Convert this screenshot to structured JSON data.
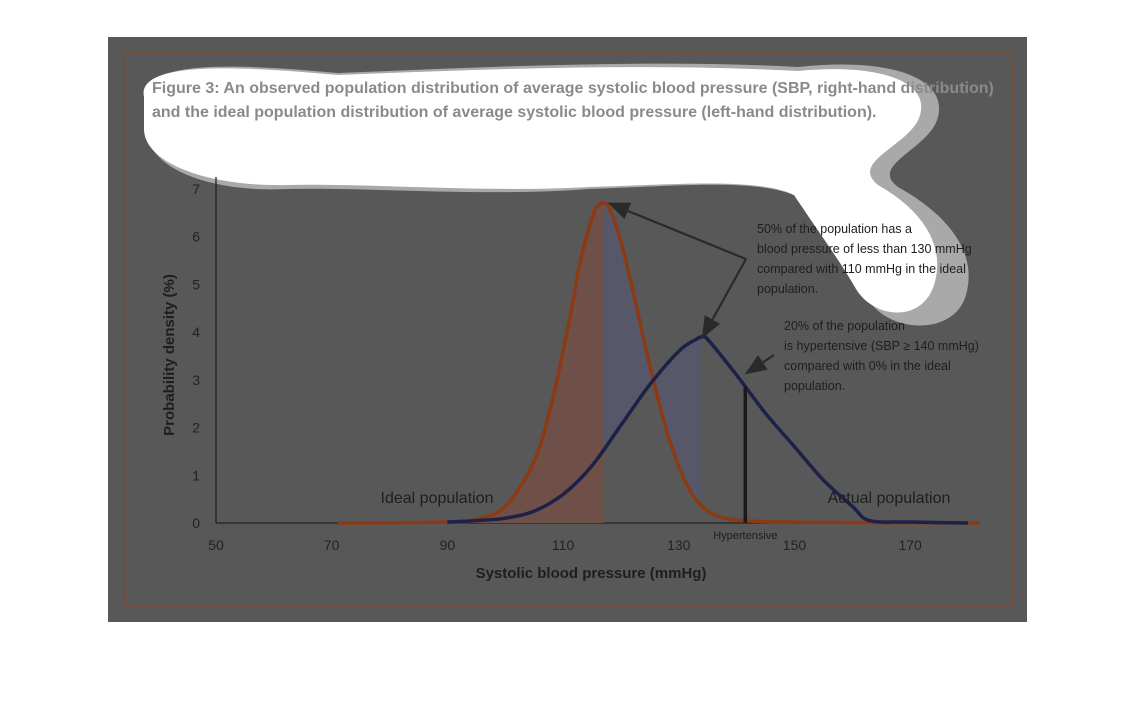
{
  "figure": {
    "caption_lines": [
      "Figure 3: An observed population distribution of average systolic blood pressure (SBP, right-hand distribution)",
      "and the ideal population distribution of average systolic blood pressure (left-hand distribution)."
    ]
  },
  "chart_data": {
    "type": "line",
    "xlabel": "Systolic blood pressure (mmHg)",
    "ylabel": "Probability density (%)",
    "xlim": [
      50,
      180
    ],
    "ylim": [
      0,
      7
    ],
    "x_ticks": [
      50,
      70,
      90,
      110,
      130,
      150,
      170
    ],
    "y_ticks": [
      0,
      1,
      2,
      3,
      4,
      5,
      6,
      7
    ],
    "grid": false,
    "series": [
      {
        "name": "Ideal population",
        "color": "#8b3a14",
        "fill": "#6e5048",
        "fill_to_x": 117,
        "x": [
          71,
          90,
          95,
          100,
          105,
          108,
          111,
          113,
          115,
          116,
          117,
          118,
          120,
          122,
          125,
          128,
          131,
          134,
          138,
          145,
          160,
          182
        ],
        "y": [
          0,
          0.02,
          0.08,
          0.35,
          1.3,
          2.5,
          4.2,
          5.5,
          6.4,
          6.65,
          6.7,
          6.6,
          5.9,
          4.9,
          3.3,
          1.9,
          0.9,
          0.35,
          0.1,
          0.03,
          0.01,
          0
        ]
      },
      {
        "name": "Actual population",
        "color": "#1c2148",
        "fill": "#57576a",
        "fill_range": [
          117,
          134
        ],
        "x": [
          90,
          95,
          100,
          105,
          110,
          115,
          120,
          125,
          130,
          133,
          134,
          135,
          140,
          145,
          150,
          155,
          160,
          163,
          170,
          180
        ],
        "y": [
          0.02,
          0.05,
          0.1,
          0.25,
          0.6,
          1.2,
          2.05,
          2.9,
          3.6,
          3.85,
          3.9,
          3.85,
          3.1,
          2.3,
          1.6,
          0.9,
          0.35,
          0.05,
          0.02,
          0
        ]
      }
    ],
    "annotations": [
      {
        "lines": [
          "50% of the population has a",
          "blood pressure of less than 130 mmHg",
          "compared with 110 mmHg in the ideal",
          "population."
        ],
        "points_to": [
          {
            "x": 117,
            "y": 6.7
          },
          {
            "x": 134,
            "y": 3.9
          }
        ]
      },
      {
        "lines": [
          "20% of the population",
          "is hypertensive (SBP  ≥ 140 mmHg)",
          "compared with 0% in the ideal",
          "population."
        ],
        "points_to": [
          {
            "x": 141.5,
            "y": 3.1
          }
        ]
      }
    ],
    "threshold": {
      "x": 141.5,
      "label": "Hypertensive"
    }
  }
}
